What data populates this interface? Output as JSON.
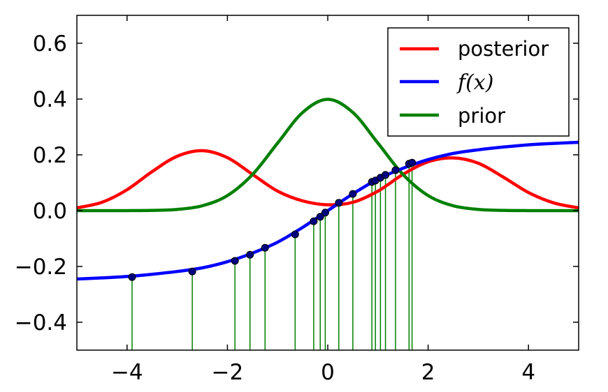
{
  "chart_data": {
    "type": "line",
    "title": "",
    "xlabel": "",
    "ylabel": "",
    "xlim": [
      -5,
      5
    ],
    "ylim": [
      -0.5,
      0.7
    ],
    "xticks": [
      -4,
      -2,
      0,
      2,
      4
    ],
    "xtick_labels": [
      "−4",
      "−2",
      "0",
      "2",
      "4"
    ],
    "yticks": [
      -0.4,
      -0.2,
      0.0,
      0.2,
      0.4,
      0.6
    ],
    "ytick_labels": [
      "−0.4",
      "−0.2",
      "0.0",
      "0.2",
      "0.4",
      "0.6"
    ],
    "grid": false,
    "legend_position": "top-right",
    "legend": [
      {
        "label": "posterior",
        "color": "#ff0000"
      },
      {
        "label": "f(x)",
        "color": "#0000ff"
      },
      {
        "label": "prior",
        "color": "#008000"
      }
    ],
    "series": [
      {
        "name": "posterior",
        "color": "#ff0000",
        "x": [
          -5.0,
          -4.5,
          -4.0,
          -3.5,
          -3.0,
          -2.5,
          -2.0,
          -1.5,
          -1.0,
          -0.5,
          0.0,
          0.5,
          1.0,
          1.5,
          2.0,
          2.5,
          3.0,
          3.5,
          4.0,
          4.5,
          5.0
        ],
        "y": [
          0.01,
          0.03,
          0.075,
          0.14,
          0.195,
          0.215,
          0.19,
          0.13,
          0.07,
          0.035,
          0.021,
          0.03,
          0.07,
          0.13,
          0.175,
          0.189,
          0.17,
          0.12,
          0.065,
          0.028,
          0.01
        ]
      },
      {
        "name": "f(x)",
        "color": "#0000ff",
        "x": [
          -5.0,
          -4.5,
          -4.0,
          -3.5,
          -3.0,
          -2.5,
          -2.0,
          -1.5,
          -1.0,
          -0.5,
          0.0,
          0.5,
          1.0,
          1.5,
          2.0,
          2.5,
          3.0,
          3.5,
          4.0,
          4.5,
          5.0
        ],
        "y": [
          -0.245,
          -0.241,
          -0.236,
          -0.228,
          -0.218,
          -0.205,
          -0.183,
          -0.152,
          -0.113,
          -0.06,
          0.0,
          0.06,
          0.113,
          0.152,
          0.183,
          0.205,
          0.218,
          0.228,
          0.236,
          0.241,
          0.245
        ]
      },
      {
        "name": "prior",
        "color": "#008000",
        "x": [
          -5.0,
          -4.5,
          -4.0,
          -3.5,
          -3.0,
          -2.5,
          -2.0,
          -1.5,
          -1.0,
          -0.5,
          0.0,
          0.5,
          1.0,
          1.5,
          2.0,
          2.5,
          3.0,
          3.5,
          4.0,
          4.5,
          5.0
        ],
        "y": [
          0.0,
          0.0,
          0.0001,
          0.0009,
          0.0044,
          0.0175,
          0.054,
          0.1295,
          0.242,
          0.352,
          0.399,
          0.352,
          0.242,
          0.1295,
          0.054,
          0.0175,
          0.0044,
          0.0009,
          0.0001,
          0.0,
          0.0
        ]
      }
    ],
    "samples": {
      "color": "#008000",
      "marker_color": "#000080",
      "stem_bottom": -0.5,
      "points": [
        {
          "x": -3.9,
          "y": -0.238
        },
        {
          "x": -2.7,
          "y": -0.218
        },
        {
          "x": -1.85,
          "y": -0.18
        },
        {
          "x": -1.55,
          "y": -0.158
        },
        {
          "x": -1.25,
          "y": -0.133
        },
        {
          "x": -0.65,
          "y": -0.085
        },
        {
          "x": -0.28,
          "y": -0.038
        },
        {
          "x": -0.15,
          "y": -0.022
        },
        {
          "x": -0.05,
          "y": -0.007
        },
        {
          "x": 0.22,
          "y": 0.028
        },
        {
          "x": 0.5,
          "y": 0.06
        },
        {
          "x": 0.88,
          "y": 0.103
        },
        {
          "x": 0.95,
          "y": 0.108
        },
        {
          "x": 1.05,
          "y": 0.118
        },
        {
          "x": 1.15,
          "y": 0.128
        },
        {
          "x": 1.35,
          "y": 0.145
        },
        {
          "x": 1.62,
          "y": 0.168
        },
        {
          "x": 1.68,
          "y": 0.172
        }
      ]
    }
  }
}
